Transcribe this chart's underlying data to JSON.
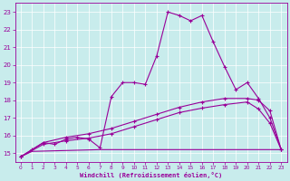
{
  "xlabel": "Windchill (Refroidissement éolien,°C)",
  "bg_color": "#c8ecec",
  "line_color": "#990099",
  "grid_color": "#ffffff",
  "xlim": [
    -0.5,
    23.5
  ],
  "ylim": [
    14.5,
    23.5
  ],
  "yticks": [
    15,
    16,
    17,
    18,
    19,
    20,
    21,
    22,
    23
  ],
  "xticks": [
    0,
    1,
    2,
    3,
    4,
    5,
    6,
    7,
    8,
    9,
    10,
    11,
    12,
    13,
    14,
    15,
    16,
    17,
    18,
    19,
    20,
    21,
    22,
    23
  ],
  "series1": [
    [
      0,
      14.8
    ],
    [
      1,
      15.2
    ],
    [
      2,
      15.6
    ],
    [
      3,
      15.5
    ],
    [
      4,
      15.8
    ],
    [
      5,
      15.9
    ],
    [
      6,
      15.8
    ],
    [
      7,
      15.3
    ],
    [
      8,
      18.2
    ],
    [
      9,
      19.0
    ],
    [
      10,
      19.0
    ],
    [
      11,
      18.9
    ],
    [
      12,
      20.5
    ],
    [
      13,
      23.0
    ],
    [
      14,
      22.8
    ],
    [
      15,
      22.5
    ],
    [
      16,
      22.8
    ],
    [
      17,
      21.3
    ],
    [
      18,
      19.9
    ],
    [
      19,
      18.6
    ],
    [
      20,
      19.0
    ],
    [
      21,
      18.1
    ],
    [
      22,
      17.0
    ],
    [
      23,
      15.2
    ]
  ],
  "series2": [
    [
      0,
      14.8
    ],
    [
      2,
      15.6
    ],
    [
      4,
      15.9
    ],
    [
      6,
      16.1
    ],
    [
      8,
      16.4
    ],
    [
      10,
      16.8
    ],
    [
      12,
      17.2
    ],
    [
      14,
      17.6
    ],
    [
      16,
      17.9
    ],
    [
      18,
      18.1
    ],
    [
      20,
      18.1
    ],
    [
      21,
      18.0
    ],
    [
      22,
      17.4
    ],
    [
      23,
      15.2
    ]
  ],
  "series3": [
    [
      0,
      14.8
    ],
    [
      2,
      15.5
    ],
    [
      4,
      15.7
    ],
    [
      6,
      15.85
    ],
    [
      8,
      16.1
    ],
    [
      10,
      16.5
    ],
    [
      12,
      16.9
    ],
    [
      14,
      17.3
    ],
    [
      16,
      17.55
    ],
    [
      18,
      17.75
    ],
    [
      20,
      17.9
    ],
    [
      21,
      17.5
    ],
    [
      22,
      16.7
    ],
    [
      23,
      15.2
    ]
  ],
  "series4": [
    [
      0,
      14.8
    ],
    [
      1,
      15.1
    ],
    [
      7,
      15.2
    ],
    [
      15,
      15.2
    ],
    [
      22,
      15.2
    ],
    [
      23,
      15.2
    ]
  ]
}
